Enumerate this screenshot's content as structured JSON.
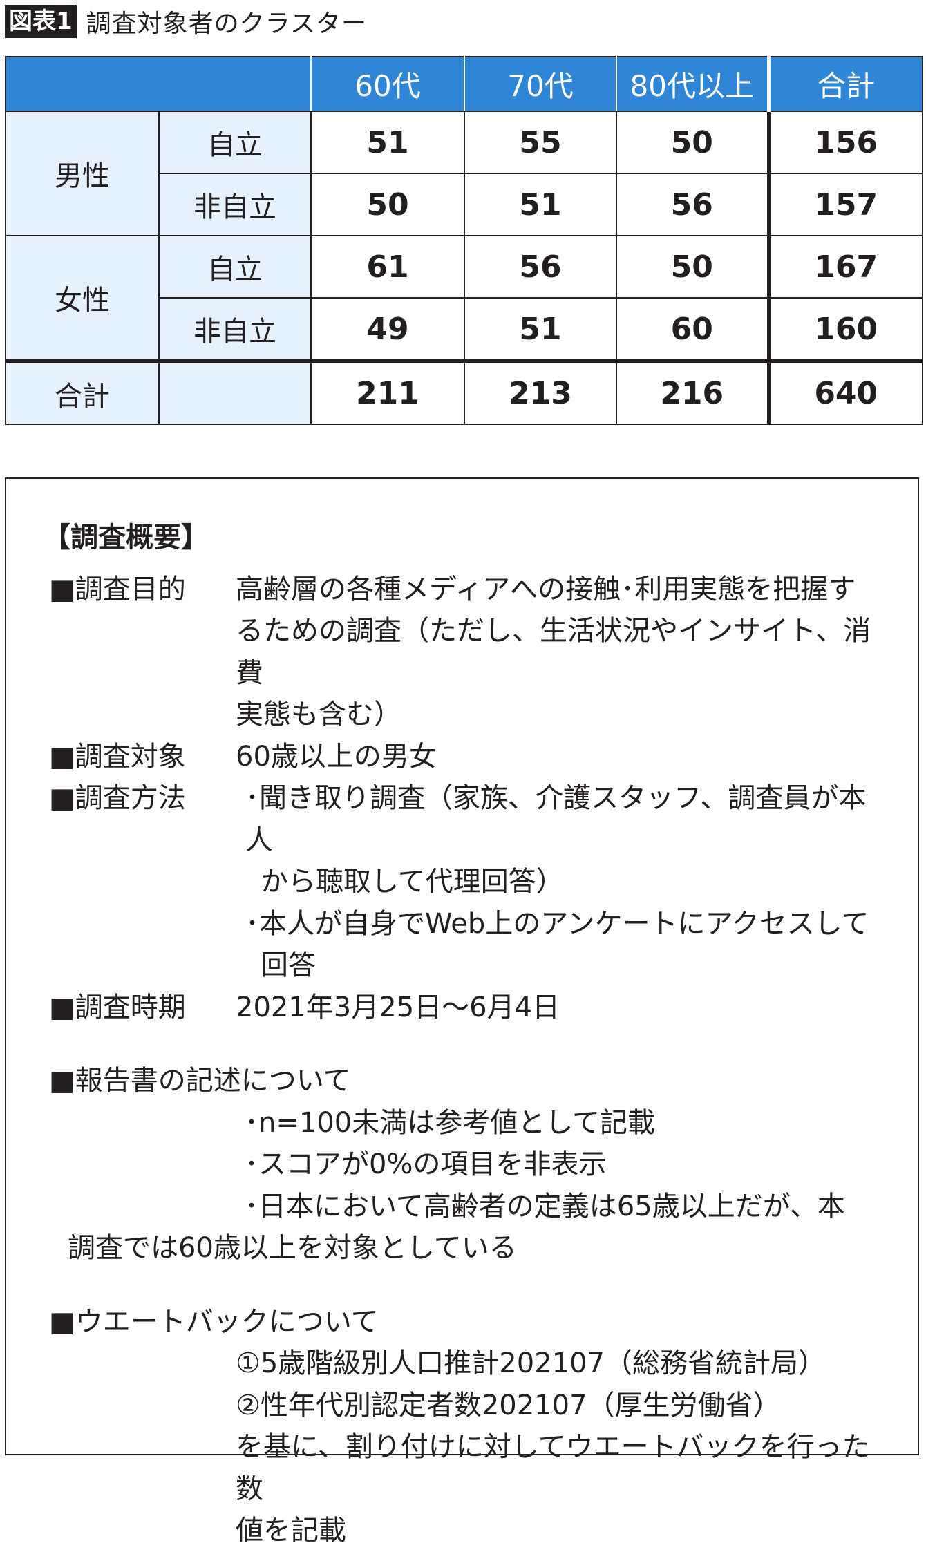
{
  "figure": {
    "badge": "図表1",
    "title": "調査対象者のクラスター"
  },
  "table": {
    "headers": [
      "",
      "",
      "60代",
      "70代",
      "80代以上",
      "合計"
    ],
    "groups": [
      {
        "label": "男性",
        "rows": [
          {
            "label": "自立",
            "values": [
              "51",
              "55",
              "50"
            ],
            "total": "156"
          },
          {
            "label": "非自立",
            "values": [
              "50",
              "51",
              "56"
            ],
            "total": "157"
          }
        ]
      },
      {
        "label": "女性",
        "rows": [
          {
            "label": "自立",
            "values": [
              "61",
              "56",
              "50"
            ],
            "total": "167"
          },
          {
            "label": "非自立",
            "values": [
              "49",
              "51",
              "60"
            ],
            "total": "160"
          }
        ]
      }
    ],
    "total_row": {
      "label": "合計",
      "sublabel": "",
      "values": [
        "211",
        "213",
        "216"
      ],
      "total": "640"
    },
    "colors": {
      "header_bg": "#2f86d6",
      "label_bg": "#e6f1fc",
      "border": "#231f20"
    }
  },
  "overview": {
    "heading": "【調査概要】",
    "purpose": {
      "label": "■調査目的",
      "lines": [
        "高齢層の各種メディアへの接触･利用実態を把握す",
        "るための調査（ただし、生活状況やインサイト、消費",
        "実態も含む）"
      ]
    },
    "target": {
      "label": "■調査対象",
      "lines": [
        "60歳以上の男女"
      ]
    },
    "method": {
      "label": "■調査方法",
      "lines": [
        "･聞き取り調査（家族、介護スタッフ、調査員が本人",
        "から聴取して代理回答）",
        "･本人が自身でWeb上のアンケートにアクセスして",
        "回答"
      ]
    },
    "period": {
      "label": "■調査時期",
      "lines": [
        "2021年3月25日～6月4日"
      ]
    },
    "report": {
      "label": "■報告書の記述について",
      "lines": [
        "･n=100未満は参考値として記載",
        "･スコアが0%の項目を非表示",
        "･日本において高齢者の定義は65歳以上だが、本",
        "調査では60歳以上を対象としている"
      ]
    },
    "weightback": {
      "label": "■ウエートバックについて",
      "lines": [
        "①5歳階級別人口推計202107（総務省統計局）",
        "②性年代別認定者数202107（厚生労働省）",
        "を基に、割り付けに対してウエートバックを行った数",
        "値を記載"
      ]
    }
  }
}
